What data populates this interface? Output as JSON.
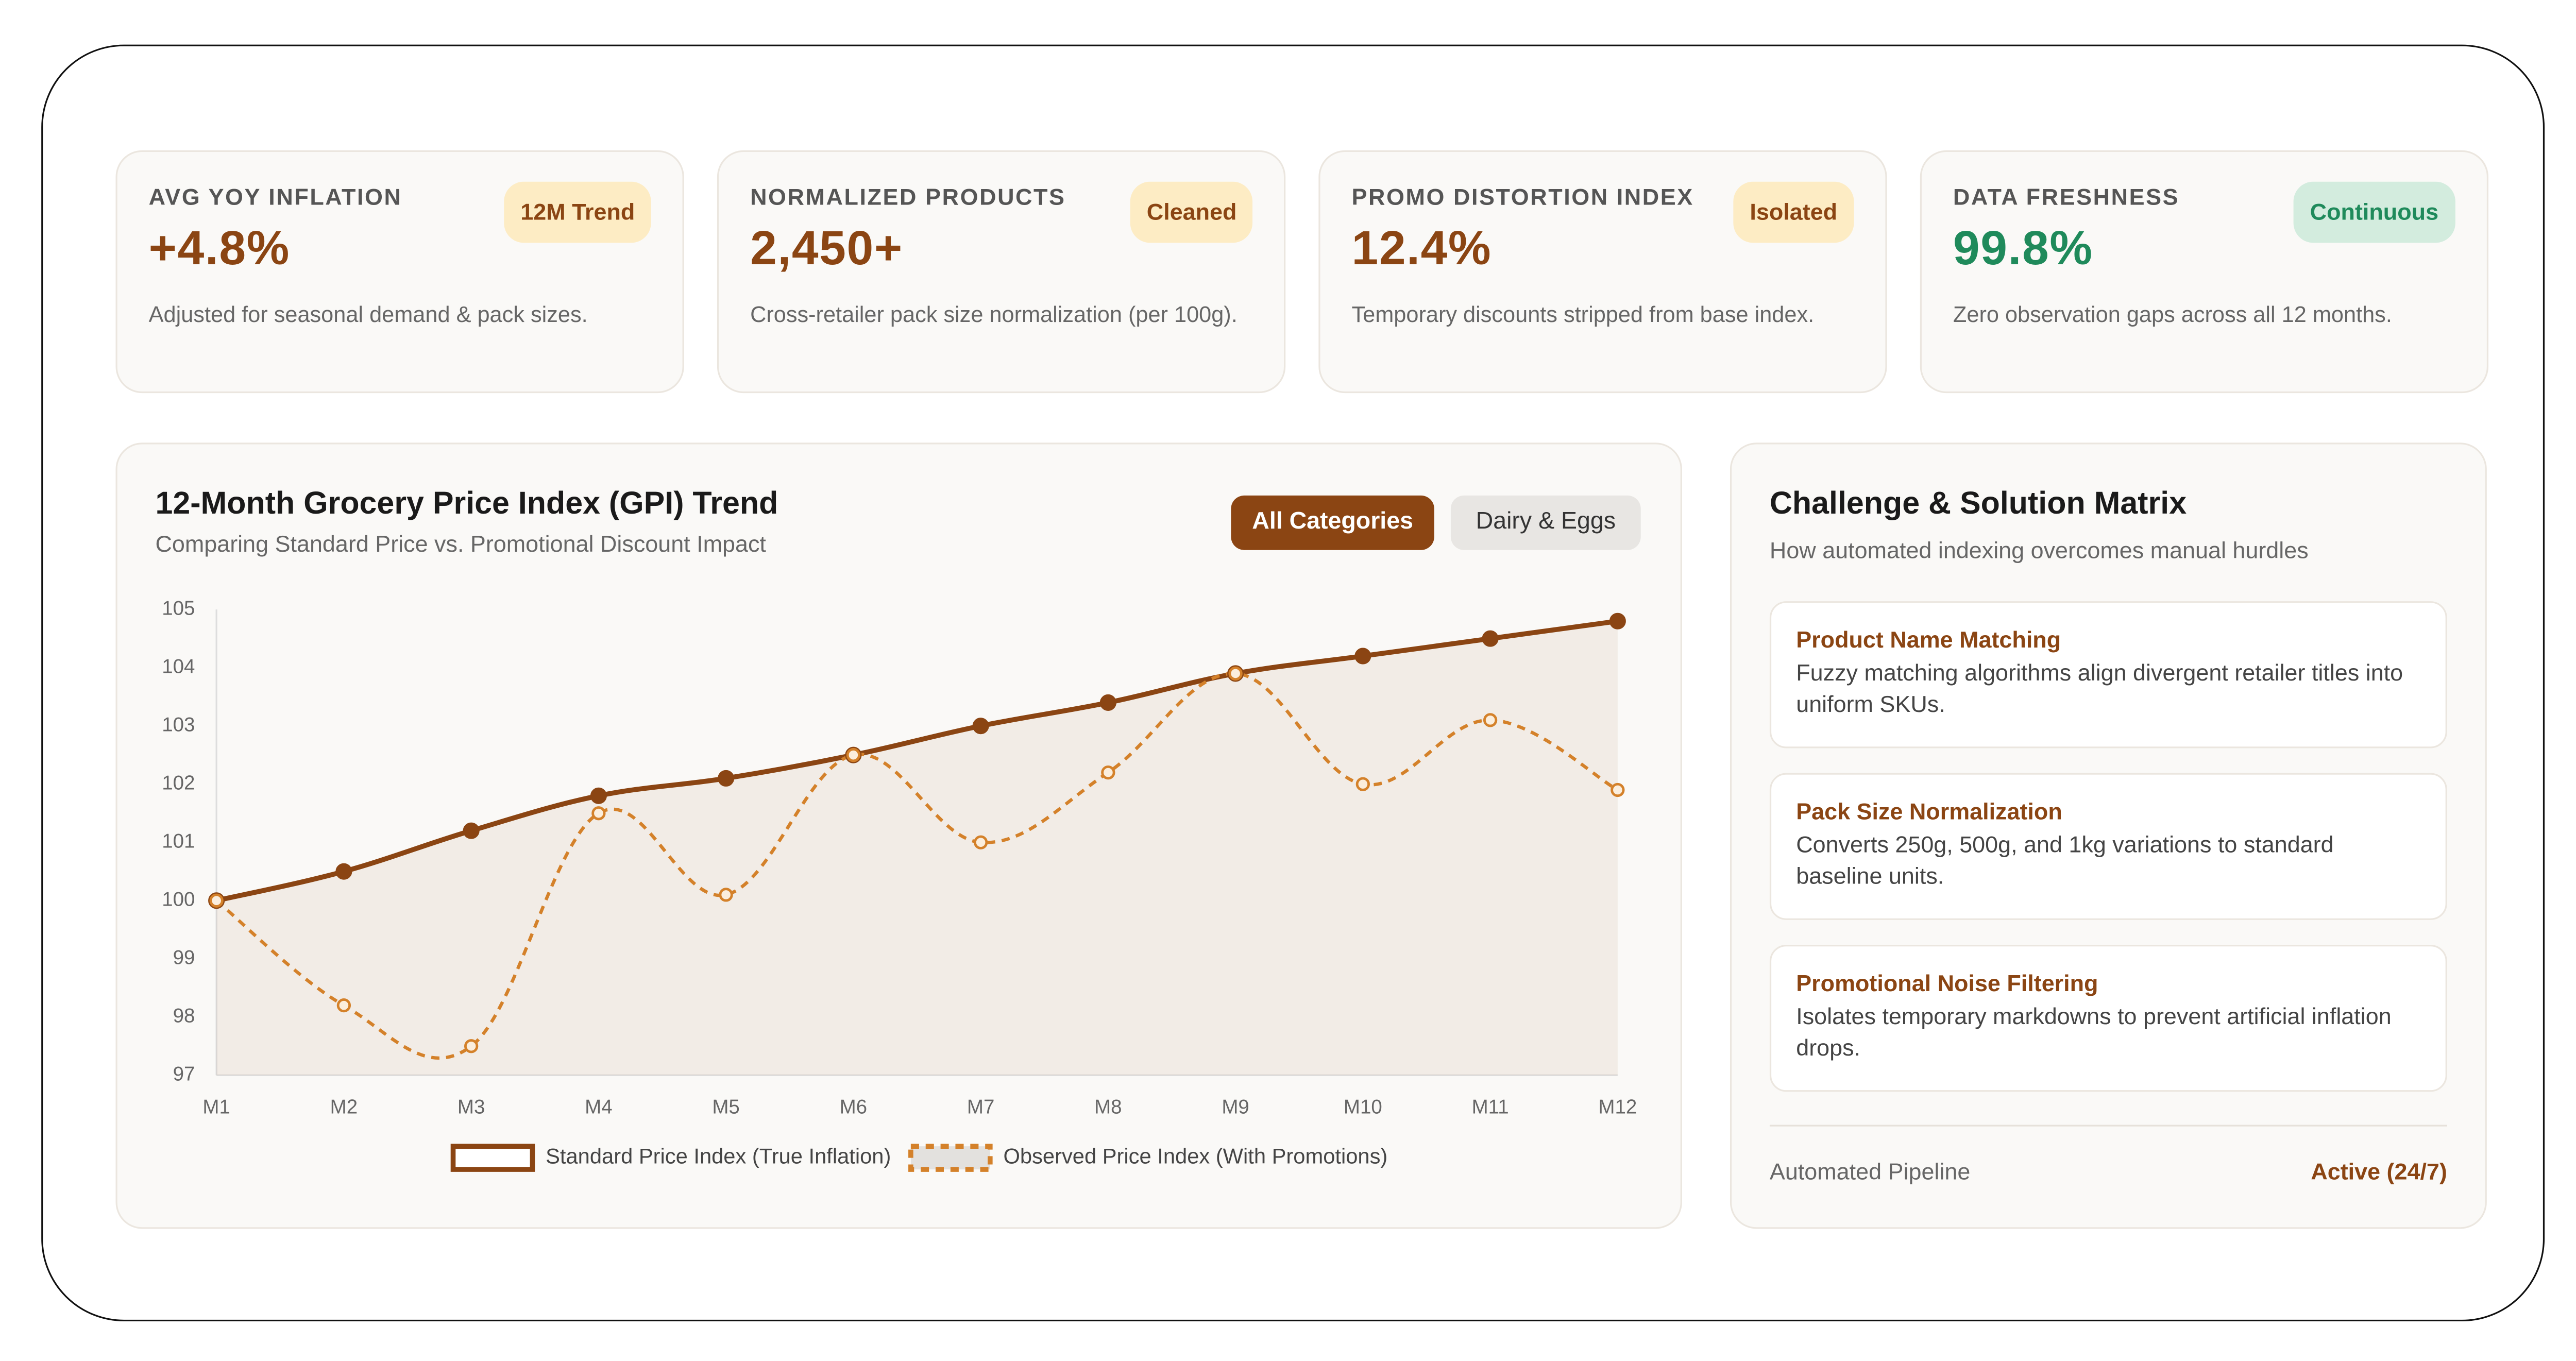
{
  "kpis": [
    {
      "label": "AVG YOY INFLATION",
      "value": "+4.8%",
      "badge": "12M Trend",
      "description": "Adjusted for seasonal demand & pack sizes.",
      "color": "#8b4513",
      "badge_bg": "#fdecc4"
    },
    {
      "label": "NORMALIZED PRODUCTS",
      "value": "2,450+",
      "badge": "Cleaned",
      "description": "Cross-retailer pack size normalization (per 100g).",
      "color": "#8b4513",
      "badge_bg": "#fdecc4"
    },
    {
      "label": "PROMO DISTORTION INDEX",
      "value": "12.4%",
      "badge": "Isolated",
      "description": "Temporary discounts stripped from base index.",
      "color": "#8b4513",
      "badge_bg": "#fdecc4"
    },
    {
      "label": "DATA FRESHNESS",
      "value": "99.8%",
      "badge": "Continuous",
      "description": "Zero observation gaps across all 12 months.",
      "color": "#1f8a5b",
      "badge_bg": "#d3ecde"
    }
  ],
  "filters": [
    "All Categories",
    "Dairy & Eggs"
  ],
  "chart_data": {
    "type": "line",
    "title": "12-Month Grocery Price Index (GPI) Trend",
    "subtitle": "Comparing Standard Price vs. Promotional Discount Impact",
    "categories": [
      "M1",
      "M2",
      "M3",
      "M4",
      "M5",
      "M6",
      "M7",
      "M8",
      "M9",
      "M10",
      "M11",
      "M12"
    ],
    "series": [
      {
        "name": "Standard Price Index (True Inflation)",
        "color": "#8b4513",
        "dashed": false,
        "fill_area": true,
        "values": [
          100,
          100.5,
          101.2,
          101.8,
          102.1,
          102.5,
          103.0,
          103.4,
          103.9,
          104.2,
          104.5,
          104.8
        ]
      },
      {
        "name": "Observed Price Index (With Promotions)",
        "color": "#d4812a",
        "dashed": true,
        "fill_area": false,
        "values": [
          100,
          98.2,
          97.5,
          101.5,
          100.1,
          102.5,
          101.0,
          102.2,
          103.9,
          102.0,
          103.1,
          101.9
        ]
      }
    ],
    "ylim": [
      97,
      105
    ],
    "yticks": [
      97,
      98,
      99,
      100,
      101,
      102,
      103,
      104,
      105
    ],
    "grid": false,
    "legend": "bottom"
  },
  "matrix": {
    "title": "Challenge & Solution Matrix",
    "subtitle": "How automated indexing overcomes manual hurdles",
    "items": [
      {
        "title": "Product Name Matching",
        "description": "Fuzzy matching algorithms align divergent retailer titles into uniform SKUs."
      },
      {
        "title": "Pack Size Normalization",
        "description": "Converts 250g, 500g, and 1kg variations to standard baseline units."
      },
      {
        "title": "Promotional Noise Filtering",
        "description": "Isolates temporary markdowns to prevent artificial inflation drops."
      }
    ],
    "footer_label": "Automated Pipeline",
    "footer_status": "Active (24/7)"
  }
}
